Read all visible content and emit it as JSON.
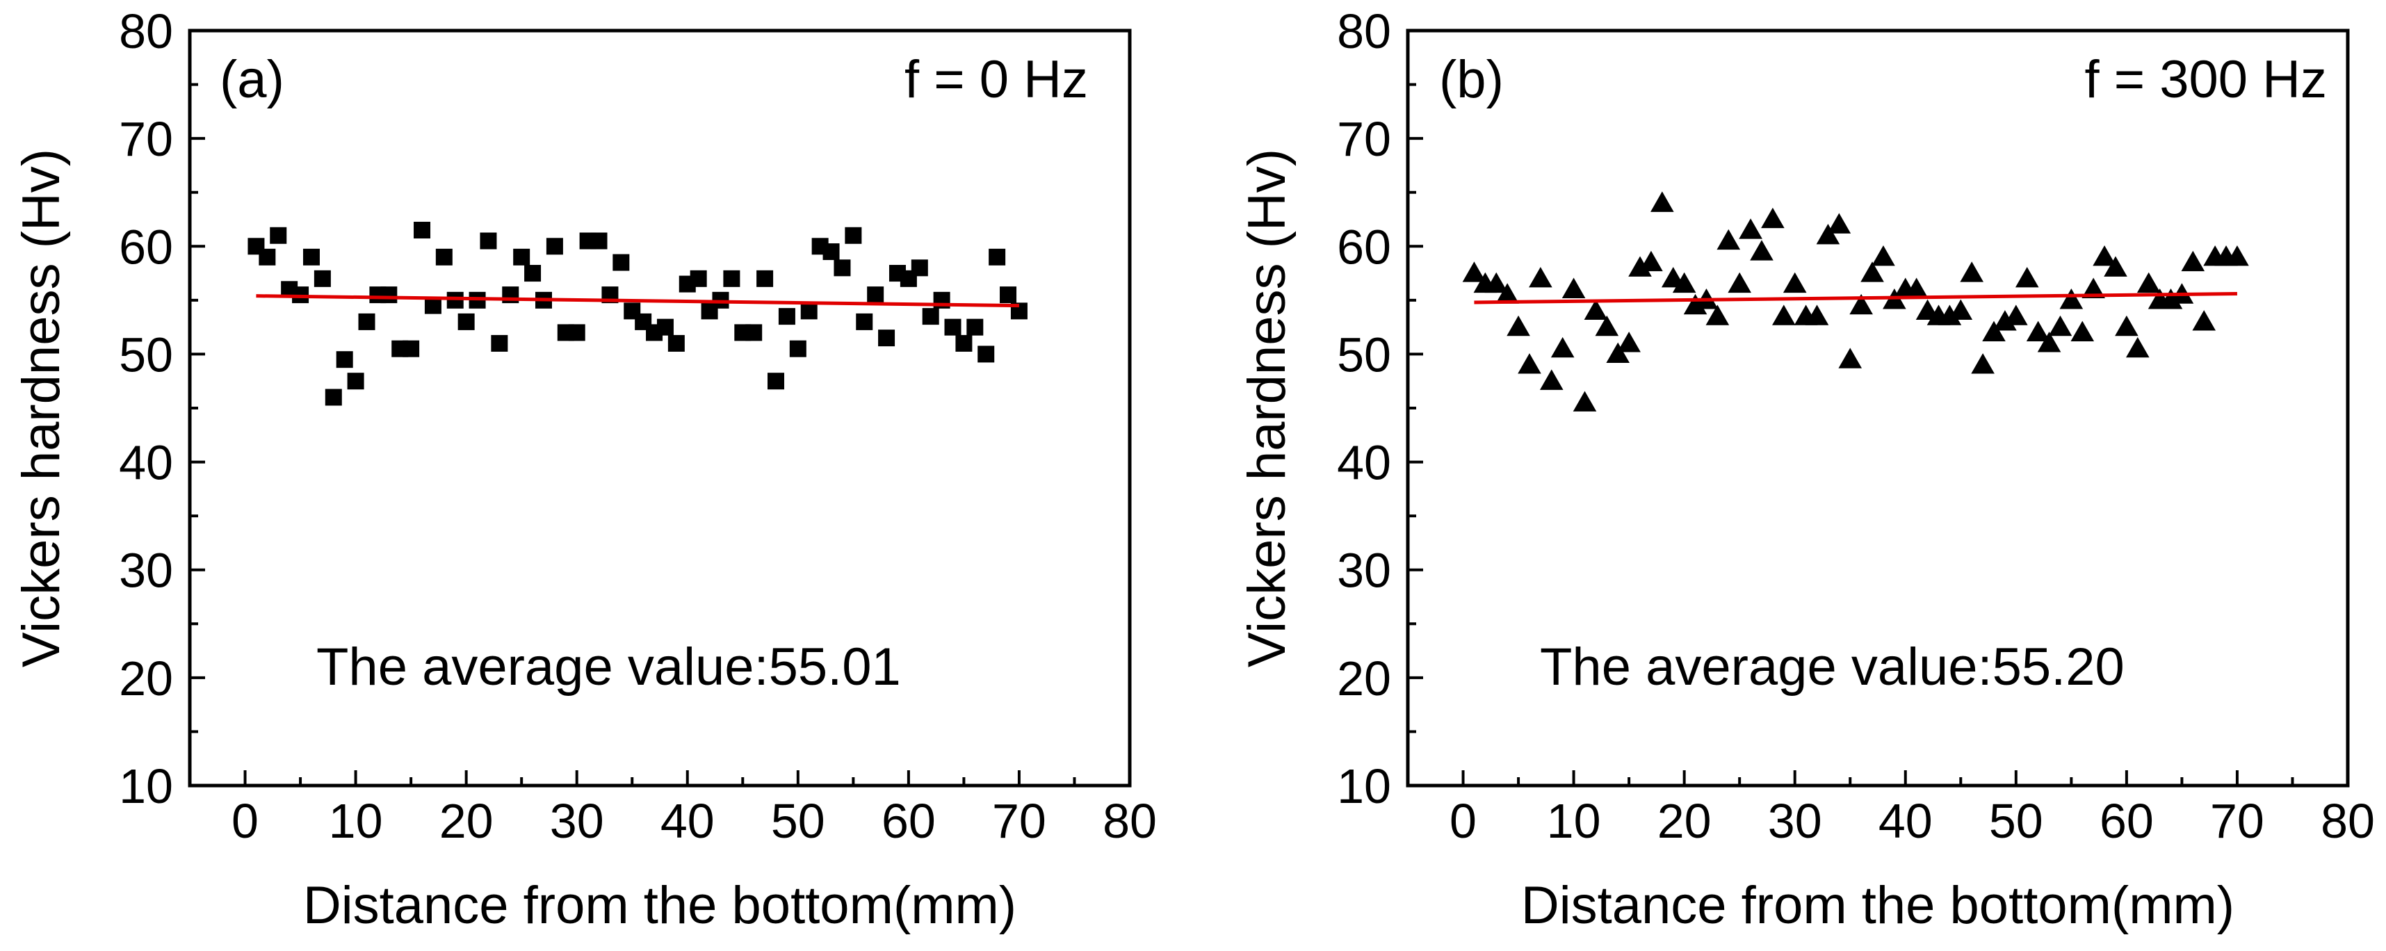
{
  "chart_data": [
    {
      "type": "scatter",
      "panel_label": "(a)",
      "condition": "f = 0 Hz",
      "xlabel": "Distance from the bottom(mm)",
      "ylabel": "Vickers hardness (Hv)",
      "annotation": "The average value:55.01",
      "xlim": [
        -5,
        80
      ],
      "ylim": [
        10,
        80
      ],
      "xticks": [
        "0",
        "10",
        "20",
        "30",
        "40",
        "50",
        "60",
        "70",
        "80"
      ],
      "yticks": [
        "10",
        "20",
        "30",
        "40",
        "50",
        "60",
        "70",
        "80"
      ],
      "marker": "square",
      "marker_color": "#000000",
      "fit_color": "#e00000",
      "fit_line": {
        "x": [
          1,
          70
        ],
        "y": [
          55.4,
          54.5
        ]
      },
      "points": {
        "x": [
          1,
          2,
          3,
          4,
          5,
          6,
          7,
          8,
          9,
          10,
          11,
          12,
          13,
          14,
          15,
          16,
          17,
          18,
          19,
          20,
          21,
          22,
          23,
          24,
          25,
          26,
          27,
          28,
          29,
          30,
          31,
          32,
          33,
          34,
          35,
          36,
          37,
          38,
          39,
          40,
          41,
          42,
          43,
          44,
          45,
          46,
          47,
          48,
          49,
          50,
          51,
          52,
          53,
          54,
          55,
          56,
          57,
          58,
          59,
          60,
          61,
          62,
          63,
          64,
          65,
          66,
          67,
          68,
          69,
          70
        ],
        "y": [
          60,
          59,
          61,
          56,
          55.5,
          59,
          57,
          46,
          49.5,
          47.5,
          53,
          55.5,
          55.5,
          50.5,
          50.5,
          61.5,
          54.5,
          59,
          55,
          53,
          55,
          60.5,
          51,
          55.5,
          59,
          57.5,
          55,
          60,
          52,
          52,
          60.5,
          60.5,
          55.5,
          58.5,
          54,
          53,
          52,
          52.5,
          51,
          56.5,
          57,
          54,
          55,
          57,
          52,
          52,
          57,
          47.5,
          53.5,
          50.5,
          54,
          60,
          59.5,
          58,
          61,
          53,
          55.5,
          51.5,
          57.5,
          57,
          58,
          53.5,
          55,
          52.5,
          51,
          52.5,
          50,
          59,
          55.5,
          54
        ]
      }
    },
    {
      "type": "scatter",
      "panel_label": "(b)",
      "condition": "f = 300 Hz",
      "xlabel": "Distance from the bottom(mm)",
      "ylabel": "Vickers hardness (Hv)",
      "annotation": "The average value:55.20",
      "xlim": [
        -5,
        80
      ],
      "ylim": [
        10,
        80
      ],
      "xticks": [
        "0",
        "10",
        "20",
        "30",
        "40",
        "50",
        "60",
        "70",
        "80"
      ],
      "yticks": [
        "10",
        "20",
        "30",
        "40",
        "50",
        "60",
        "70",
        "80"
      ],
      "marker": "triangle",
      "marker_color": "#000000",
      "fit_color": "#e00000",
      "fit_line": {
        "x": [
          1,
          70
        ],
        "y": [
          54.8,
          55.6
        ]
      },
      "points": {
        "x": [
          1,
          2,
          3,
          4,
          5,
          6,
          7,
          8,
          9,
          10,
          11,
          12,
          13,
          14,
          15,
          16,
          17,
          18,
          19,
          20,
          21,
          22,
          23,
          24,
          25,
          26,
          27,
          28,
          29,
          30,
          31,
          32,
          33,
          34,
          35,
          36,
          37,
          38,
          39,
          40,
          41,
          42,
          43,
          44,
          45,
          46,
          47,
          48,
          49,
          50,
          51,
          52,
          53,
          54,
          55,
          56,
          57,
          58,
          59,
          60,
          61,
          62,
          63,
          64,
          65,
          66,
          67,
          68,
          69,
          70
        ],
        "y": [
          57.5,
          56.5,
          56.5,
          55.5,
          52.5,
          49,
          57,
          47.5,
          50.5,
          56,
          45.5,
          54,
          52.5,
          50,
          51,
          58,
          58.5,
          64,
          57,
          56.5,
          54.5,
          55,
          53.5,
          60.5,
          56.5,
          61.5,
          59.5,
          62.5,
          53.5,
          56.5,
          53.5,
          53.5,
          61,
          62,
          49.5,
          54.5,
          57.5,
          59,
          55,
          56,
          56,
          54,
          53.5,
          53.5,
          54,
          57.5,
          49,
          52,
          53,
          53.5,
          57,
          52,
          51,
          52.5,
          55,
          52,
          56,
          59,
          58,
          52.5,
          50.5,
          56.5,
          55,
          55,
          55.5,
          58.5,
          53,
          59,
          59,
          59
        ]
      }
    }
  ]
}
